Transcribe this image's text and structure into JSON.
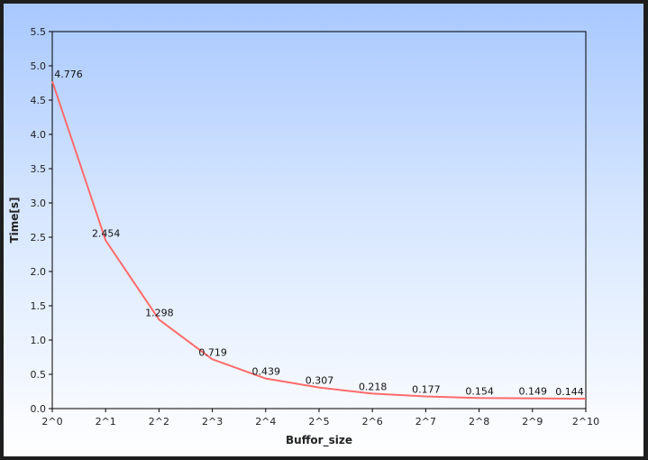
{
  "chart_data": {
    "type": "line",
    "title": "",
    "xlabel": "Buffor_size",
    "ylabel": "Time[s]",
    "categories": [
      "2^0",
      "2^1",
      "2^2",
      "2^3",
      "2^4",
      "2^5",
      "2^6",
      "2^7",
      "2^8",
      "2^9",
      "2^10"
    ],
    "series": [
      {
        "values": [
          4.776,
          2.454,
          1.298,
          0.719,
          0.439,
          0.307,
          0.218,
          0.177,
          0.154,
          0.149,
          0.144
        ],
        "color": "#ff6b6b"
      }
    ],
    "data_labels": [
      "4.776",
      "2.454",
      "1.298",
      "0.719",
      "0.439",
      "0.307",
      "0.218",
      "0.177",
      "0.154",
      "0.149",
      "0.144"
    ],
    "ylim": [
      0,
      5.5
    ],
    "y_ticks": [
      "0.0",
      "0.5",
      "1.0",
      "1.5",
      "2.0",
      "2.5",
      "3.0",
      "3.5",
      "4.0",
      "4.5",
      "5.0",
      "5.5"
    ],
    "y_tick_values": [
      0,
      0.5,
      1.0,
      1.5,
      2.0,
      2.5,
      3.0,
      3.5,
      4.0,
      4.5,
      5.0,
      5.5
    ],
    "grid": false,
    "legend": "none",
    "background": [
      "#a8c8ff",
      "#ffffff"
    ]
  }
}
